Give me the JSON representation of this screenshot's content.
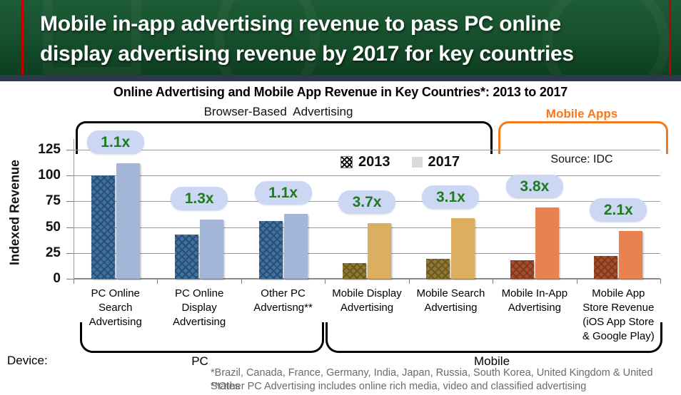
{
  "header": {
    "title_line1": "Mobile in-app advertising revenue to pass PC online",
    "title_line2": "display advertising revenue by 2017 for key countries"
  },
  "labels": {
    "browser_based": "Browser-Based  Advertising",
    "mobile_apps": "Mobile Apps"
  },
  "source": "Source: IDC",
  "device": {
    "label": "Device:",
    "pc": "PC",
    "mobile": "Mobile"
  },
  "footnotes": [
    "*Brazil, Canada, France, Germany, India, Japan, Russia, South Korea, United Kingdom & United States",
    "**Other PC Advertising includes online rich media, video and classified advertising"
  ],
  "chart_data": {
    "type": "bar",
    "title": "Online Advertising and Mobile App Revenue in Key Countries*: 2013 to 2017",
    "ylabel": "Indexed Revenue",
    "ylim": [
      0,
      125
    ],
    "yticks": [
      0,
      25,
      50,
      75,
      100,
      125
    ],
    "grid": true,
    "legend_position": "top-center",
    "categories": [
      "PC Online Search Advertising",
      "PC Online Display Advertising",
      "Other PC Advertisng**",
      "Mobile Display Advertising",
      "Mobile Search Advertising",
      "Mobile In-App Advertising",
      "Mobile App Store Revenue (iOS App Store & Google Play)"
    ],
    "category_lines": [
      [
        "PC Online",
        "Search",
        "Advertising"
      ],
      [
        "PC Online",
        "Display",
        "Advertising"
      ],
      [
        "Other PC",
        "Advertisng**"
      ],
      [
        "Mobile Display",
        "Advertising"
      ],
      [
        "Mobile Search",
        "Advertising"
      ],
      [
        "Mobile In-App",
        "Advertising"
      ],
      [
        "Mobile App",
        "Store Revenue",
        "(iOS App Store",
        "& Google Play)"
      ]
    ],
    "series": [
      {
        "name": "2013",
        "values": [
          100,
          43,
          56,
          15,
          19,
          18,
          22
        ]
      },
      {
        "name": "2017",
        "values": [
          112,
          57,
          63,
          54,
          59,
          69,
          46
        ]
      }
    ],
    "multipliers": [
      "1.1x",
      "1.3x",
      "1.1x",
      "3.7x",
      "3.1x",
      "3.8x",
      "2.1x"
    ],
    "palette_map": [
      0,
      0,
      0,
      1,
      1,
      2,
      2
    ],
    "device_groups": [
      {
        "label": "PC",
        "categories": [
          0,
          1,
          2
        ]
      },
      {
        "label": "Mobile",
        "categories": [
          3,
          4,
          5,
          6
        ]
      }
    ]
  },
  "colors": {
    "header_bg": "#17512d",
    "header_accent": "#c00000",
    "divider": "#2b3a4c",
    "mobile_apps_orange": "#f4791f",
    "badge_bg": "#ccd7f3",
    "badge_text": "#1e7c1e",
    "footnote_gray": "#6b6b6b",
    "grid_gray": "#9b9b9b",
    "legend_2017_swatch": "#d9d9d9",
    "series_2013": [
      {
        "base": "#3f72a3",
        "hatch": "#2b4f72"
      },
      {
        "base": "#8f7830",
        "hatch": "#6a5a22"
      },
      {
        "base": "#a64e2b",
        "hatch": "#7d3a1e"
      }
    ],
    "series_2017": [
      "#a3b6d7",
      "#dcae5f",
      "#e8834f"
    ]
  }
}
